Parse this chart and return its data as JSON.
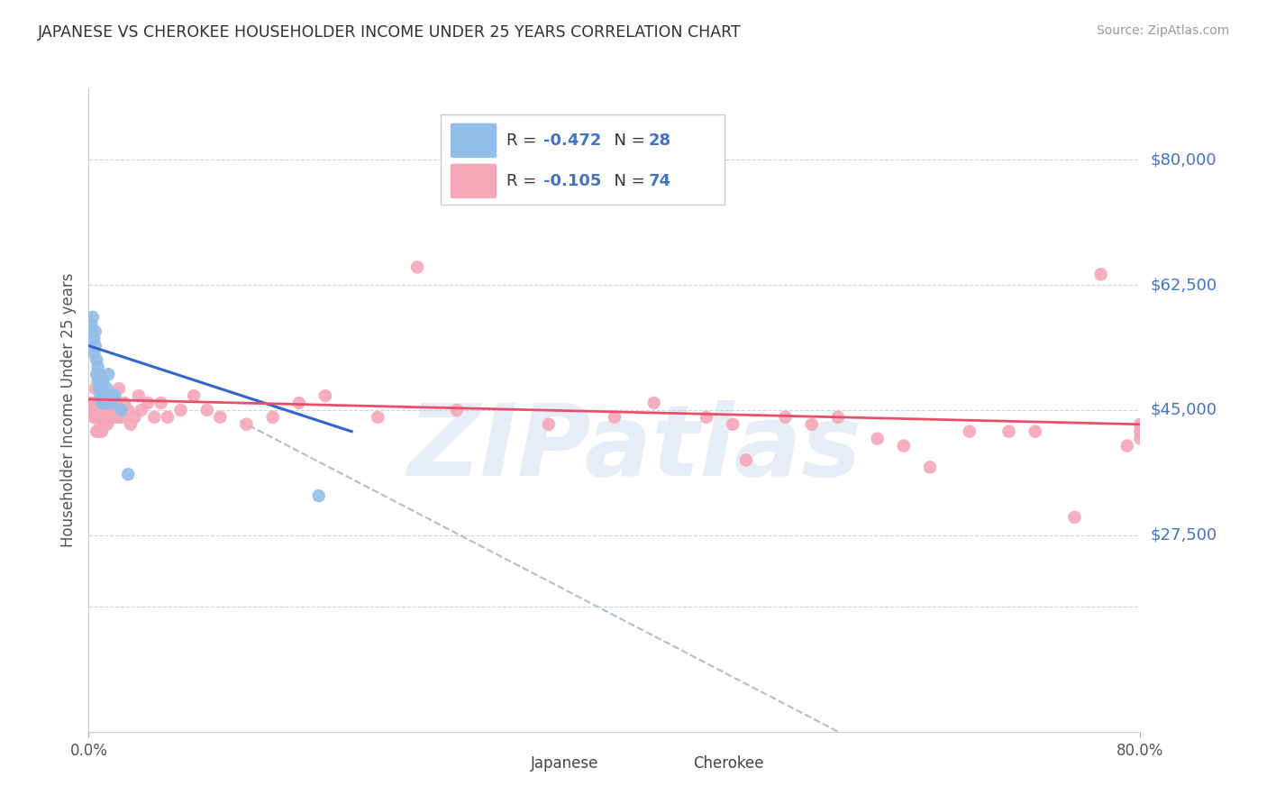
{
  "title": "JAPANESE VS CHEROKEE HOUSEHOLDER INCOME UNDER 25 YEARS CORRELATION CHART",
  "source": "Source: ZipAtlas.com",
  "ylabel": "Householder Income Under 25 years",
  "watermark": "ZIPatlas",
  "xlim": [
    0.0,
    0.8
  ],
  "ylim": [
    0,
    90000
  ],
  "legend_r_jp": "R = ",
  "legend_r_jp_val": "-0.472",
  "legend_n_jp": "  N = ",
  "legend_n_jp_val": "28",
  "legend_r_ch": "R = ",
  "legend_r_ch_val": "-0.105",
  "legend_n_ch": "  N = ",
  "legend_n_ch_val": "74",
  "japanese_color": "#92bde8",
  "cherokee_color": "#f4a7b8",
  "japanese_line_color": "#3366cc",
  "cherokee_line_color": "#e8506a",
  "dashed_line_color": "#aabfcf",
  "background_color": "#ffffff",
  "grid_color": "#c8d4e8",
  "title_color": "#303030",
  "axis_label_color": "#555555",
  "right_tick_color": "#4472c4",
  "source_color": "#999999",
  "japanese_x": [
    0.001,
    0.002,
    0.003,
    0.004,
    0.004,
    0.005,
    0.005,
    0.006,
    0.006,
    0.007,
    0.007,
    0.008,
    0.008,
    0.009,
    0.009,
    0.01,
    0.01,
    0.011,
    0.012,
    0.013,
    0.014,
    0.015,
    0.016,
    0.018,
    0.02,
    0.025,
    0.03,
    0.175
  ],
  "japanese_y": [
    56000,
    57000,
    58000,
    55000,
    53000,
    56000,
    54000,
    52000,
    50000,
    51000,
    49000,
    50000,
    48000,
    49000,
    47000,
    48000,
    46000,
    49000,
    47000,
    46000,
    48000,
    50000,
    47000,
    46000,
    47000,
    45000,
    36000,
    33000
  ],
  "cherokee_x": [
    0.002,
    0.003,
    0.004,
    0.005,
    0.005,
    0.006,
    0.006,
    0.007,
    0.007,
    0.008,
    0.008,
    0.008,
    0.009,
    0.009,
    0.01,
    0.01,
    0.011,
    0.012,
    0.012,
    0.013,
    0.013,
    0.014,
    0.015,
    0.016,
    0.017,
    0.018,
    0.019,
    0.02,
    0.021,
    0.022,
    0.023,
    0.025,
    0.027,
    0.03,
    0.032,
    0.035,
    0.038,
    0.04,
    0.045,
    0.05,
    0.055,
    0.06,
    0.07,
    0.08,
    0.09,
    0.1,
    0.12,
    0.14,
    0.16,
    0.18,
    0.22,
    0.25,
    0.28,
    0.35,
    0.4,
    0.43,
    0.47,
    0.49,
    0.5,
    0.53,
    0.55,
    0.57,
    0.6,
    0.62,
    0.64,
    0.67,
    0.7,
    0.72,
    0.75,
    0.77,
    0.79,
    0.8,
    0.8,
    0.8
  ],
  "cherokee_y": [
    46000,
    45000,
    44000,
    48000,
    46000,
    44000,
    42000,
    46000,
    44000,
    42000,
    46000,
    44000,
    43000,
    45000,
    42000,
    46000,
    44000,
    46000,
    44000,
    43000,
    45000,
    43000,
    45000,
    44000,
    46000,
    47000,
    45000,
    44000,
    46000,
    44000,
    48000,
    44000,
    46000,
    45000,
    43000,
    44000,
    47000,
    45000,
    46000,
    44000,
    46000,
    44000,
    45000,
    47000,
    45000,
    44000,
    43000,
    44000,
    46000,
    47000,
    44000,
    65000,
    45000,
    43000,
    44000,
    46000,
    44000,
    43000,
    38000,
    44000,
    43000,
    44000,
    41000,
    40000,
    37000,
    42000,
    42000,
    42000,
    30000,
    64000,
    40000,
    43000,
    41000,
    42000
  ],
  "jp_line_x0": 0.0,
  "jp_line_y0": 54000,
  "jp_line_x1": 0.2,
  "jp_line_y1": 42000,
  "ch_line_x0": 0.0,
  "ch_line_y0": 46500,
  "ch_line_x1": 0.8,
  "ch_line_y1": 43000,
  "dash_line_x0": 0.115,
  "dash_line_y0": 43500,
  "dash_line_x1": 0.57,
  "dash_line_y1": 0
}
